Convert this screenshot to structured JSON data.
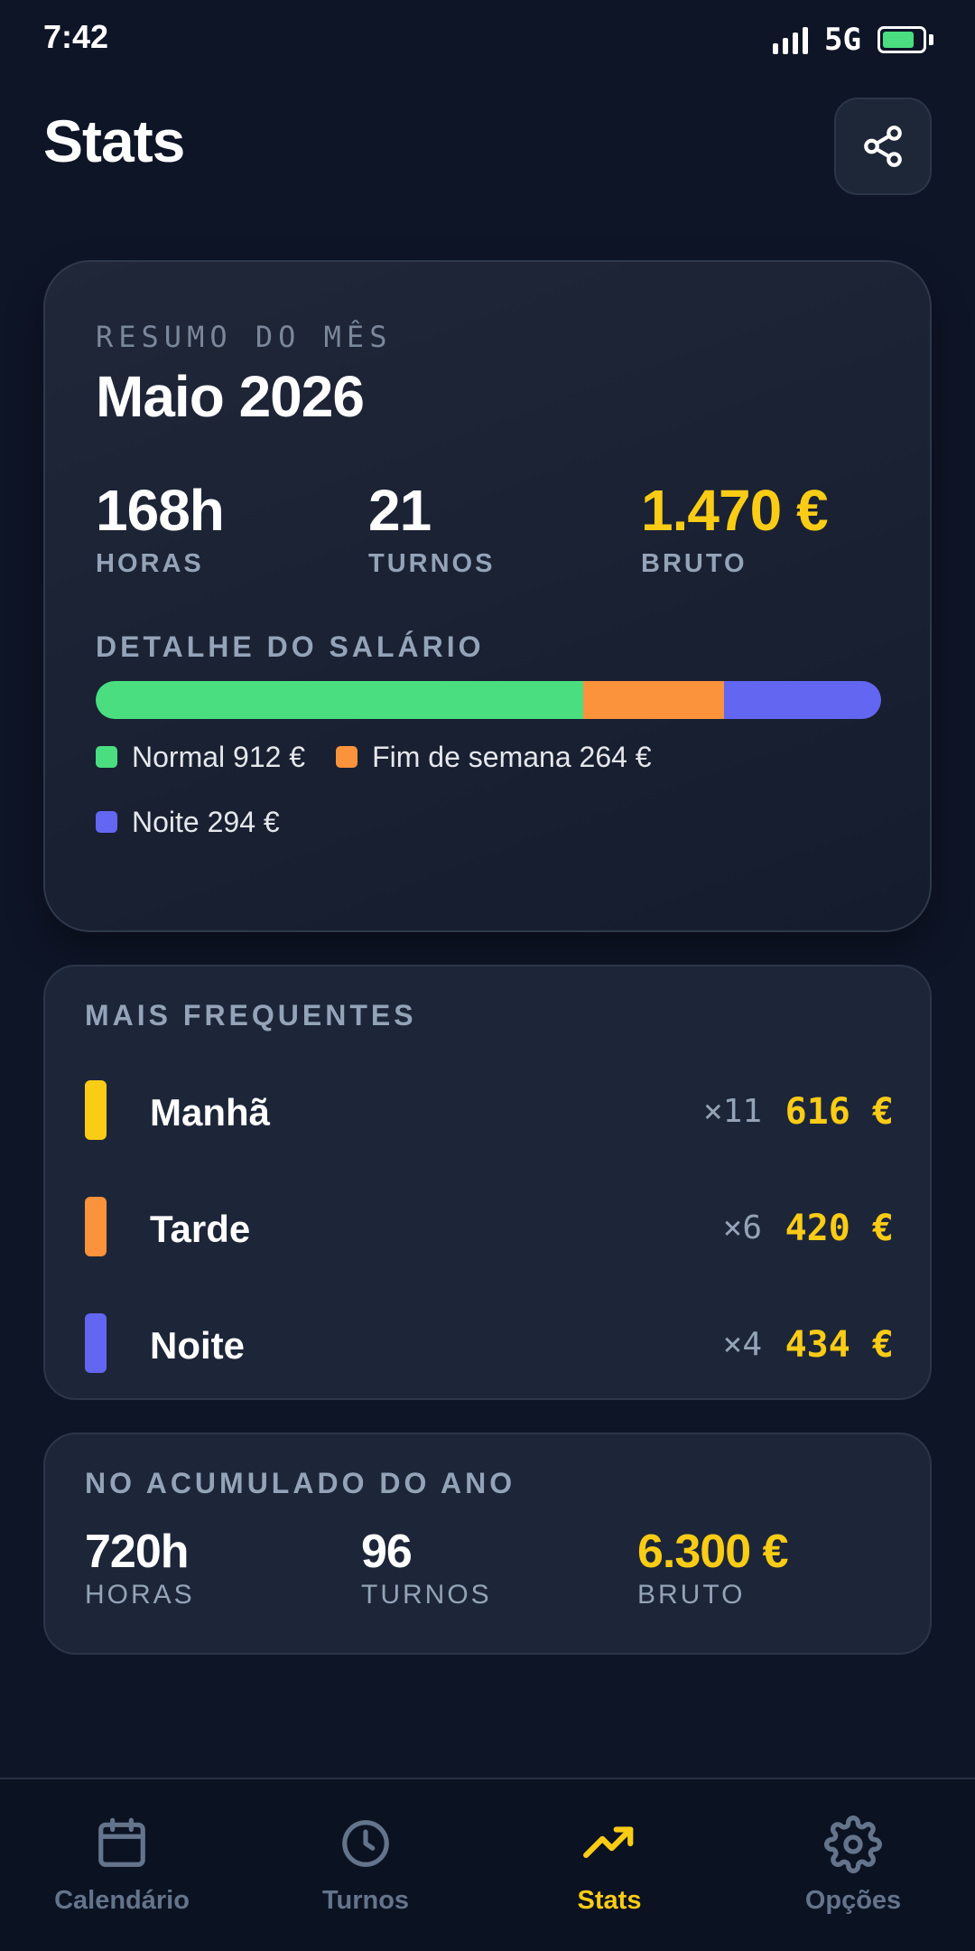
{
  "status_bar": {
    "time": "7:42",
    "network": "5G"
  },
  "header": {
    "title": "Stats"
  },
  "summary": {
    "kicker": "RESUMO DO MÊS",
    "month": "Maio 2026",
    "stats": [
      {
        "value": "168h",
        "label": "HORAS"
      },
      {
        "value": "21",
        "label": "TURNOS"
      },
      {
        "value": "1.470 €",
        "label": "BRUTO"
      }
    ],
    "salary_title": "DETALHE DO SALÁRIO",
    "salary_breakdown": [
      {
        "label": "Normal 912 €",
        "amount": 912,
        "color": "#4ade80"
      },
      {
        "label": "Fim de semana 264 €",
        "amount": 264,
        "color": "#fb923c"
      },
      {
        "label": "Noite 294 €",
        "amount": 294,
        "color": "#6366f1"
      }
    ]
  },
  "frequent": {
    "title": "MAIS FREQUENTES",
    "shifts": [
      {
        "name": "Manhã",
        "count": "×11",
        "amount": "616 €",
        "color": "#facc15"
      },
      {
        "name": "Tarde",
        "count": "×6",
        "amount": "420 €",
        "color": "#fb923c"
      },
      {
        "name": "Noite",
        "count": "×4",
        "amount": "434 €",
        "color": "#6366f1"
      }
    ]
  },
  "year": {
    "title": "NO ACUMULADO DO ANO",
    "stats": [
      {
        "value": "720h",
        "label": "HORAS"
      },
      {
        "value": "96",
        "label": "TURNOS"
      },
      {
        "value": "6.300 €",
        "label": "BRUTO"
      }
    ]
  },
  "nav": {
    "active": "Stats",
    "items": [
      {
        "label": "Calendário",
        "icon": "calendar-icon"
      },
      {
        "label": "Turnos",
        "icon": "clock-icon"
      },
      {
        "label": "Stats",
        "icon": "trending-up-icon"
      },
      {
        "label": "Opções",
        "icon": "gear-icon"
      }
    ]
  },
  "colors": {
    "accent": "#facc15",
    "background": "#0e1527",
    "card": "#1d2638",
    "muted": "#94a3b8"
  }
}
